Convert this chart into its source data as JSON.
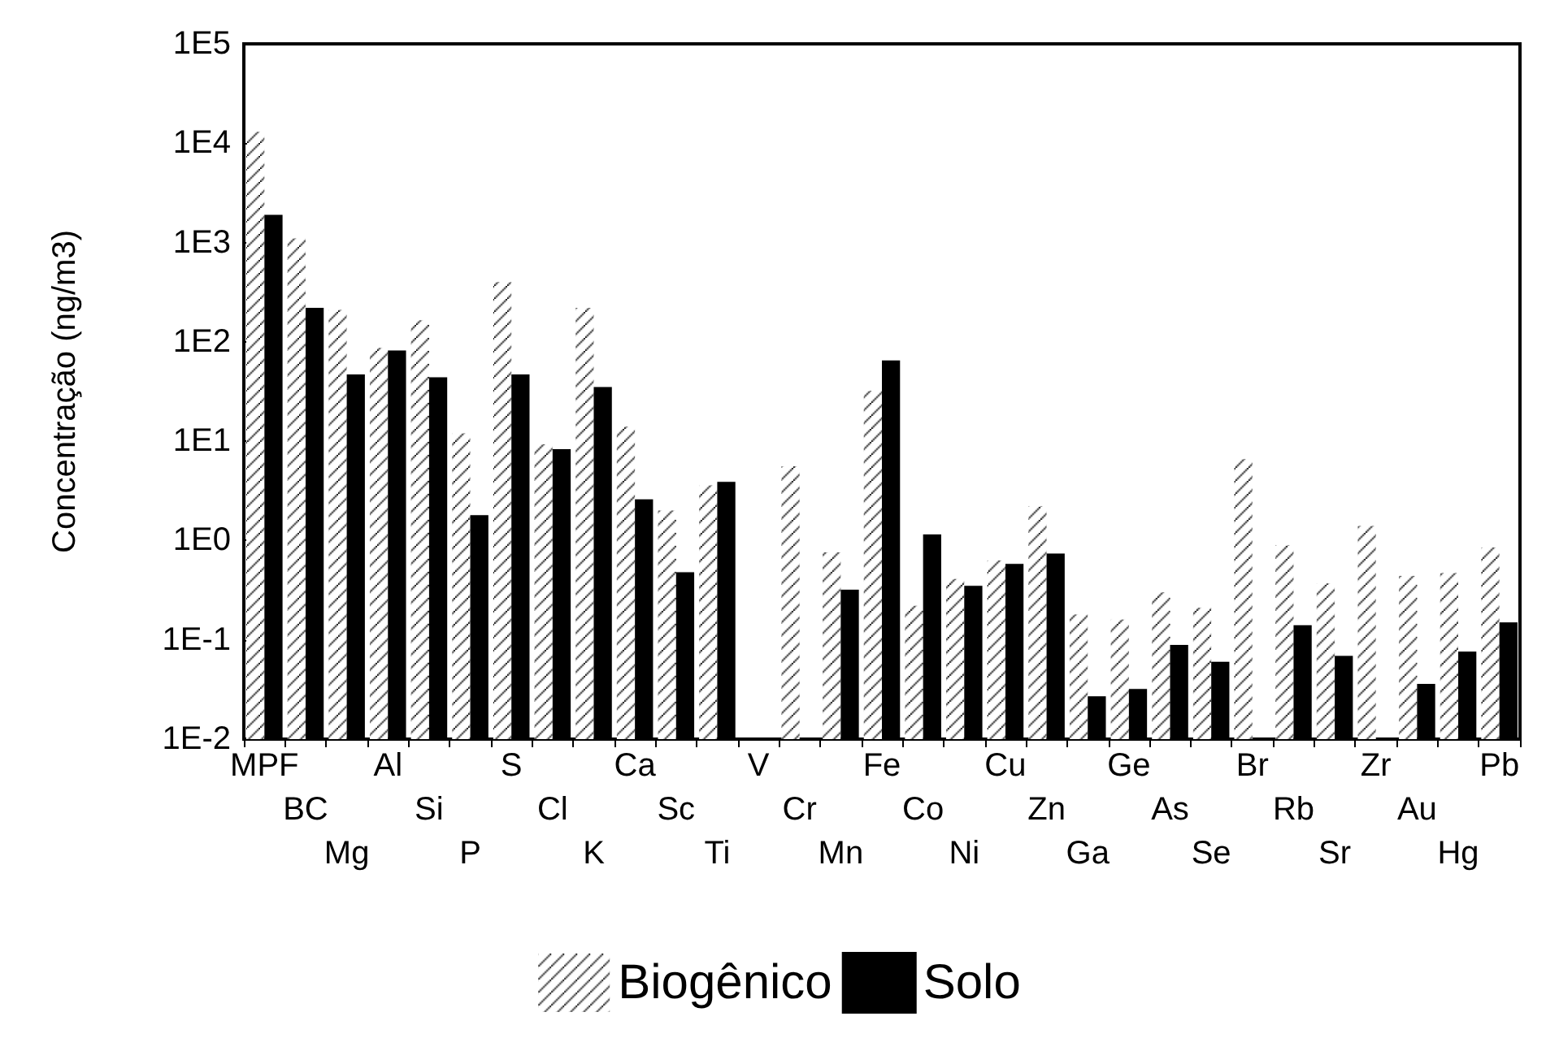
{
  "chart_data": {
    "type": "bar",
    "ylabel": "Concentração (ng/m3)",
    "categories": [
      "MPF",
      "BC",
      "Mg",
      "Al",
      "Si",
      "P",
      "S",
      "Cl",
      "K",
      "Ca",
      "Sc",
      "Ti",
      "V",
      "Cr",
      "Mn",
      "Fe",
      "Co",
      "Ni",
      "Cu",
      "Zn",
      "Ga",
      "Ge",
      "As",
      "Se",
      "Br",
      "Rb",
      "Sr",
      "Zr",
      "Au",
      "Hg",
      "Pb"
    ],
    "series": [
      {
        "name": "Biogênico",
        "color": "#ffffff",
        "values": [
          13000,
          1100,
          210,
          87,
          165,
          12,
          400,
          9.3,
          220,
          14,
          2.0,
          3.6,
          null,
          5.6,
          0.76,
          32,
          0.22,
          0.41,
          0.63,
          2.2,
          0.18,
          0.16,
          0.3,
          0.21,
          6.6,
          0.89,
          0.37,
          1.4,
          0.44,
          0.47,
          0.85
        ]
      },
      {
        "name": "Solo",
        "color": "#000000",
        "values": [
          1900,
          220,
          47,
          82,
          44,
          1.8,
          47,
          8.3,
          35,
          2.6,
          0.48,
          3.9,
          null,
          null,
          0.32,
          65,
          1.15,
          0.35,
          0.58,
          0.74,
          0.027,
          0.032,
          0.089,
          0.06,
          null,
          0.14,
          0.069,
          null,
          0.036,
          0.076,
          0.15
        ]
      }
    ],
    "log": "y",
    "ylim": [
      0.01,
      100000
    ],
    "yticks": [
      {
        "value": 0.01,
        "label": "1E-2"
      },
      {
        "value": 0.1,
        "label": "1E-1"
      },
      {
        "value": 1,
        "label": "1E0"
      },
      {
        "value": 10,
        "label": "1E1"
      },
      {
        "value": 100,
        "label": "1E2"
      },
      {
        "value": 1000,
        "label": "1E3"
      },
      {
        "value": 10000,
        "label": "1E4"
      },
      {
        "value": 100000,
        "label": "1E5"
      }
    ],
    "grid": false,
    "legend": "bottom"
  }
}
